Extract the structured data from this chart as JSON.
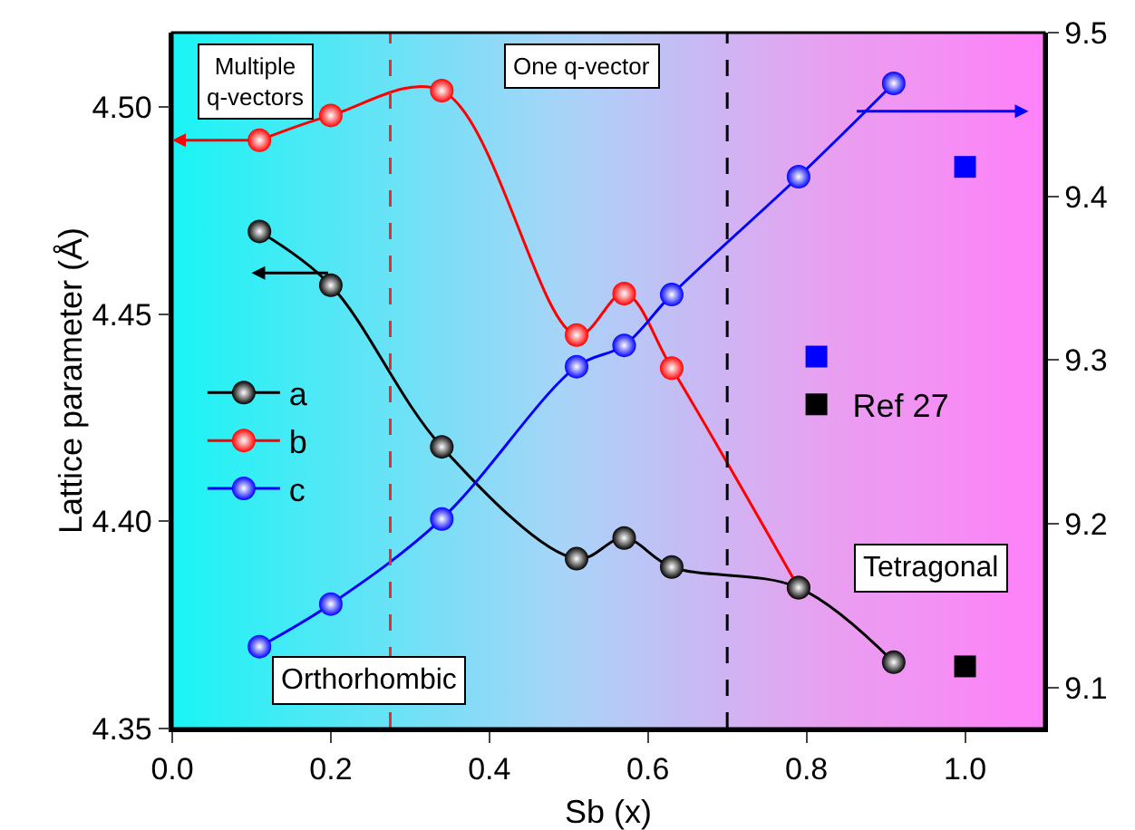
{
  "chart_data": {
    "type": "line",
    "xlabel": "Sb (x)",
    "ylabel": "Lattice parameter (Å)",
    "xlim": [
      0,
      1.1
    ],
    "xticks": [
      {
        "value": 0,
        "label": "0.0"
      },
      0.2,
      0.4,
      0.6,
      0.8,
      {
        "value": 1,
        "label": "1.0"
      }
    ],
    "ylim": [
      4.35,
      4.518
    ],
    "yticks": [
      4.35,
      {
        "value": 4.4,
        "label": "4.40"
      },
      4.45,
      {
        "value": 4.5,
        "label": "4.50"
      }
    ],
    "y2lim": [
      9.075,
      9.5
    ],
    "y2ticks": [
      9.1,
      9.2,
      9.3,
      9.4,
      9.5
    ],
    "grid": false,
    "legend": "left",
    "line_style": "solid",
    "marker": "circle",
    "series": [
      {
        "name": "a",
        "color": "#000000",
        "x": [
          0.11,
          0.2,
          0.34,
          0.51,
          0.57,
          0.63,
          0.79,
          0.91
        ],
        "values": [
          4.47,
          4.457,
          4.418,
          4.391,
          4.396,
          4.389,
          4.384,
          4.366
        ]
      },
      {
        "name": "b",
        "color": "#ff0000",
        "x": [
          0.11,
          0.2,
          0.34,
          0.51,
          0.57,
          0.63,
          0.79
        ],
        "values": [
          4.492,
          4.498,
          4.504,
          4.445,
          4.455,
          4.437,
          4.384
        ]
      },
      {
        "name": "c",
        "color": "#0000ff",
        "axis": "y2",
        "x": [
          0.11,
          0.2,
          0.34,
          0.51,
          0.57,
          0.63,
          0.79,
          0.91
        ],
        "values": [
          9.125,
          9.151,
          9.203,
          9.296,
          9.309,
          9.34,
          9.412,
          9.469
        ]
      },
      {
        "type": "scatter",
        "marker": "square",
        "color": "#0000ff",
        "axis": "y2",
        "x": [
          1.0
        ],
        "values": [
          9.418
        ]
      },
      {
        "type": "scatter",
        "marker": "square",
        "name": "Ref 27",
        "color": "#000000",
        "x": [
          1.0
        ],
        "values": [
          4.365
        ]
      }
    ],
    "ref_lines": [
      {
        "axis": "x",
        "value": 0.275,
        "color": "#e03030",
        "line_style": "dashed"
      },
      {
        "axis": "x",
        "value": 0.7,
        "color": "#000000",
        "line_style": "dashed"
      }
    ],
    "annotations": [
      "Multiple q-vectors",
      "One q-vector",
      "Orthorhombic",
      "Tetragonal"
    ]
  }
}
